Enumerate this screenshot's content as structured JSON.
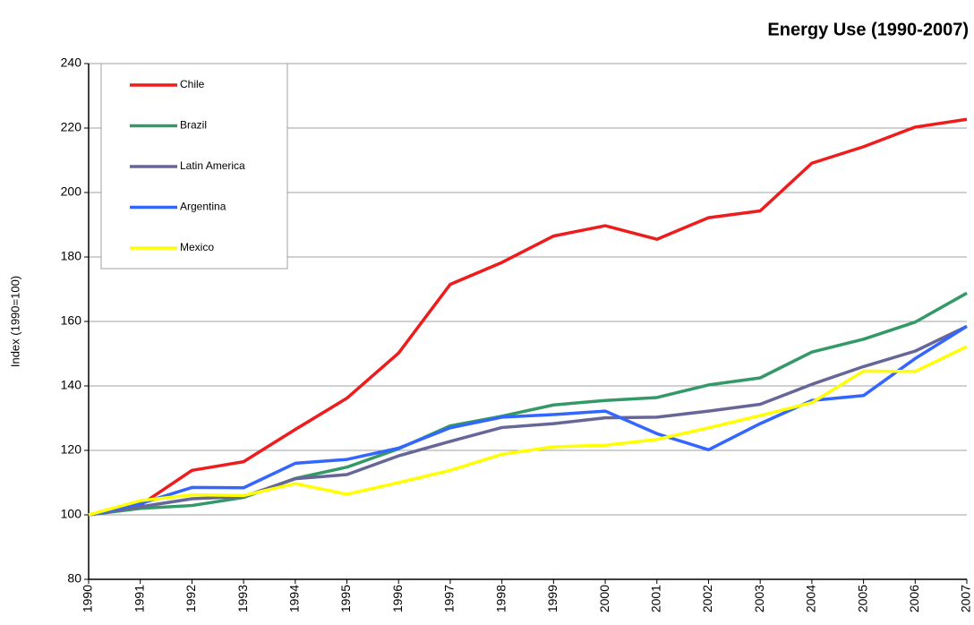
{
  "chart_data": {
    "type": "line",
    "title": "Energy Use (1990-2007)",
    "y_label": "Index (1990=100)",
    "categories": [
      "1990",
      "1991",
      "1992",
      "1993",
      "1994",
      "1995",
      "1996",
      "1997",
      "1998",
      "1999",
      "2000",
      "2001",
      "2002",
      "2003",
      "2004",
      "2005",
      "2006",
      "2007"
    ],
    "series": [
      {
        "name": "Chile",
        "color": "#ee1c1c",
        "values": [
          100,
          103,
          113.8,
          116.5,
          126.5,
          136.2,
          150.2,
          171.5,
          178.3,
          186.5,
          189.7,
          185.5,
          192.2,
          194.3,
          209.1,
          214.2,
          220.3,
          222.7
        ]
      },
      {
        "name": "Brazil",
        "color": "#339966",
        "values": [
          100,
          102,
          102.9,
          105.4,
          111.3,
          114.8,
          120.5,
          127.6,
          130.6,
          134.1,
          135.5,
          136.4,
          140.3,
          142.5,
          150.5,
          154.5,
          159.8,
          168.8
        ]
      },
      {
        "name": "Latin America",
        "color": "#666699",
        "values": [
          100,
          102.5,
          105,
          105.7,
          111.2,
          112.5,
          118.3,
          122.8,
          127.1,
          128.3,
          130.1,
          130.3,
          132.2,
          134.3,
          140.5,
          146,
          150.8,
          158.5
        ]
      },
      {
        "name": "Argentina",
        "color": "#3366ff",
        "values": [
          100,
          103.5,
          108.5,
          108.4,
          116,
          117.2,
          120.7,
          127,
          130.3,
          131.1,
          132.2,
          125.2,
          120.2,
          128.3,
          135.5,
          137,
          148.5,
          158.5
        ]
      },
      {
        "name": "Mexico",
        "color": "#ffff00",
        "values": [
          100,
          104.4,
          106.2,
          106,
          109.7,
          106.4,
          110,
          113.8,
          118.8,
          121.1,
          121.6,
          123.4,
          127,
          130.8,
          134.8,
          144.6,
          144.5,
          152.2
        ]
      }
    ],
    "ylim": [
      80,
      240
    ],
    "yticks": [
      80,
      100,
      120,
      140,
      160,
      180,
      200,
      220,
      240
    ],
    "grid": true,
    "legend": "upper left"
  }
}
